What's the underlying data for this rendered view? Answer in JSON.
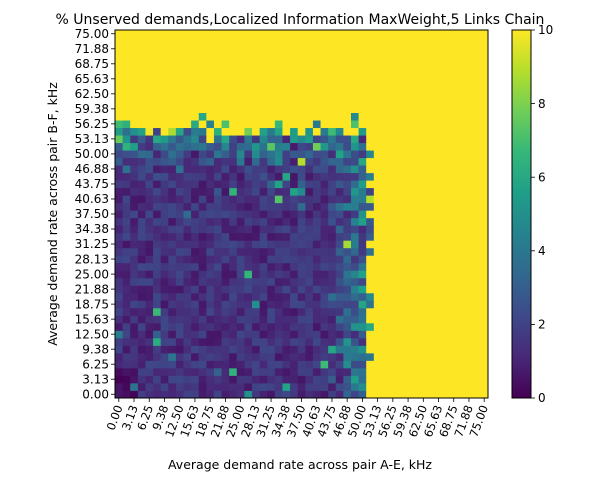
{
  "chart_data": {
    "type": "heatmap",
    "title": "% Unserved demands,Localized Information MaxWeight,5 Links Chain",
    "xlabel": "Average demand rate across pair A-E, kHz",
    "ylabel": "Average demand rate across pair B-F, kHz",
    "x_ticks": [
      "0.00",
      "3.13",
      "6.25",
      "9.38",
      "12.50",
      "15.63",
      "18.75",
      "21.88",
      "25.00",
      "28.13",
      "31.25",
      "34.38",
      "37.50",
      "40.63",
      "43.75",
      "46.88",
      "50.00",
      "53.13",
      "56.25",
      "59.38",
      "62.50",
      "65.63",
      "68.75",
      "71.88",
      "75.00"
    ],
    "y_ticks": [
      "0.00",
      "3.13",
      "6.25",
      "9.38",
      "12.50",
      "15.63",
      "18.75",
      "21.88",
      "25.00",
      "28.13",
      "31.25",
      "34.38",
      "37.50",
      "40.63",
      "43.75",
      "46.88",
      "50.00",
      "53.13",
      "56.25",
      "59.38",
      "62.50",
      "65.63",
      "68.75",
      "71.88",
      "75.00"
    ],
    "xlim": [
      0,
      75
    ],
    "ylim": [
      0,
      75
    ],
    "grid_size": 49,
    "colormap": "viridis",
    "colorbar": {
      "min": 0,
      "max": 10,
      "ticks": [
        "0",
        "2",
        "4",
        "6",
        "8",
        "10"
      ]
    },
    "regions": [
      {
        "description": "saturated (>=10%) unserved region",
        "x_range_kHz": [
          53.13,
          75
        ],
        "y_range_kHz": [
          0,
          75
        ],
        "value": 10
      },
      {
        "description": "saturated (>=10%) unserved region",
        "x_range_kHz": [
          0,
          75
        ],
        "y_range_kHz": [
          59.38,
          75
        ],
        "value": 10
      },
      {
        "description": "low unserved region (mostly 0-2%)",
        "x_range_kHz": [
          0,
          46
        ],
        "y_range_kHz": [
          0,
          46
        ],
        "value_range": [
          0,
          2
        ]
      },
      {
        "description": "noisy transition boundary",
        "x_boundary_kHz": 50,
        "y_boundary_kHz": 53,
        "value_range": [
          2,
          10
        ]
      }
    ]
  },
  "colors": {
    "viridis_stops": [
      "#440154",
      "#482878",
      "#3e4989",
      "#31688e",
      "#26828e",
      "#1f9e89",
      "#35b779",
      "#6ece58",
      "#b5de2b",
      "#fde725"
    ]
  }
}
